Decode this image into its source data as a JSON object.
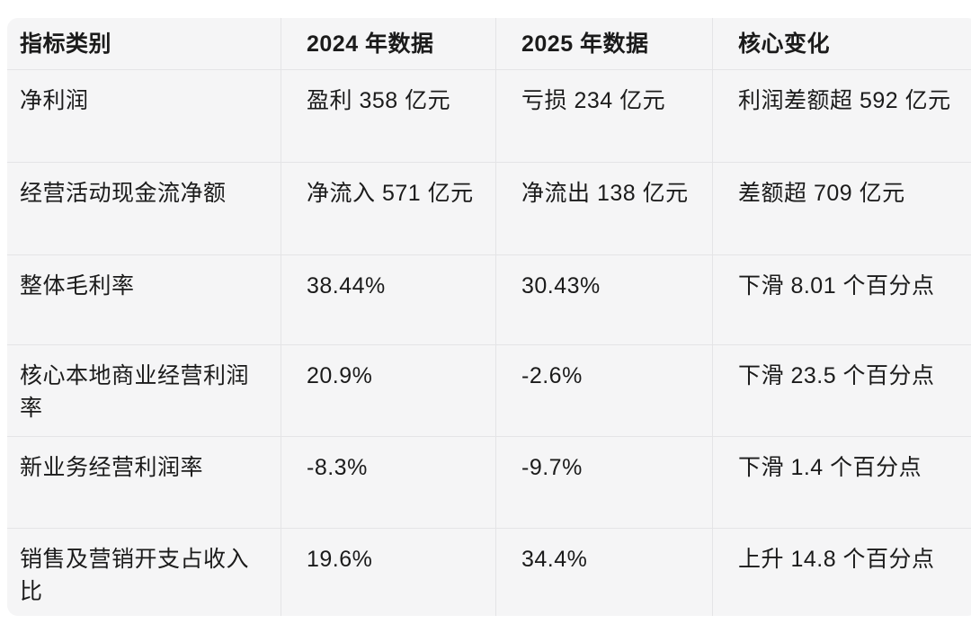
{
  "table": {
    "columns": [
      "指标类别",
      "2024 年数据",
      "2025 年数据",
      "核心变化"
    ],
    "rows": [
      {
        "metric": "净利润",
        "y2024": "盈利 358 亿元",
        "y2025": "亏损 234 亿元",
        "change": "利润差额超 592 亿元"
      },
      {
        "metric": "经营活动现金流净额",
        "y2024": "净流入 571 亿元",
        "y2025": "净流出 138 亿元",
        "change": "差额超 709 亿元"
      },
      {
        "metric": "整体毛利率",
        "y2024": "38.44%",
        "y2025": "30.43%",
        "change": "下滑 8.01 个百分点"
      },
      {
        "metric": "核心本地商业经营利润率",
        "y2024": "20.9%",
        "y2025": "-2.6%",
        "change": "下滑 23.5 个百分点"
      },
      {
        "metric": "新业务经营利润率",
        "y2024": "-8.3%",
        "y2025": "-9.7%",
        "change": "下滑 1.4 个百分点"
      },
      {
        "metric": "销售及营销开支占收入比",
        "y2024": "19.6%",
        "y2025": "34.4%",
        "change": "上升 14.8 个百分点"
      }
    ]
  },
  "colors": {
    "page_bg": "#ffffff",
    "table_bg": "#f5f5f6",
    "divider": "#e4e4e6",
    "text": "#1b1b1b"
  }
}
